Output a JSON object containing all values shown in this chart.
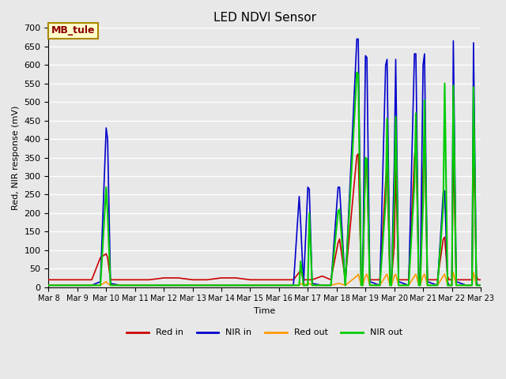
{
  "title": "LED NDVI Sensor",
  "ylabel": "Red, NIR response (mV)",
  "xlabel": "Time",
  "annotation": "MB_tule",
  "ylim": [
    0,
    700
  ],
  "background_color": "#e8e8e8",
  "plot_bg_color": "#e8e8e8",
  "grid_color": "#ffffff",
  "series": {
    "Red in": {
      "color": "#cc0000",
      "lw": 1.2
    },
    "NIR in": {
      "color": "#0000cc",
      "lw": 1.2
    },
    "Red out": {
      "color": "#ff9900",
      "lw": 1.2
    },
    "NIR out": {
      "color": "#00cc00",
      "lw": 1.5
    }
  },
  "x_days": [
    8.0,
    8.5,
    9.0,
    9.5,
    9.8,
    10.0,
    10.05,
    10.15,
    10.5,
    11.0,
    11.5,
    12.0,
    12.5,
    13.0,
    13.5,
    14.0,
    14.5,
    15.0,
    15.5,
    16.0,
    16.5,
    16.7,
    16.75,
    16.85,
    17.0,
    17.05,
    17.15,
    17.5,
    17.8,
    18.05,
    18.1,
    18.3,
    18.7,
    18.75,
    18.85,
    18.9,
    19.0,
    19.05,
    19.15,
    19.5,
    19.7,
    19.75,
    19.85,
    19.9,
    20.0,
    20.05,
    20.15,
    20.5,
    20.7,
    20.75,
    20.85,
    20.9,
    21.0,
    21.05,
    21.15,
    21.5,
    21.7,
    21.75,
    21.85,
    21.9,
    22.0,
    22.05,
    22.15,
    22.5,
    22.7,
    22.75,
    22.85,
    22.9,
    23.0
  ],
  "red_in": [
    20,
    20,
    20,
    20,
    80,
    90,
    80,
    20,
    20,
    20,
    20,
    25,
    25,
    20,
    20,
    25,
    25,
    20,
    20,
    20,
    20,
    40,
    45,
    20,
    20,
    20,
    20,
    30,
    20,
    120,
    130,
    20,
    355,
    360,
    30,
    20,
    330,
    325,
    20,
    20,
    285,
    320,
    30,
    20,
    110,
    320,
    20,
    20,
    350,
    395,
    30,
    20,
    315,
    400,
    20,
    20,
    130,
    135,
    30,
    20,
    20,
    380,
    20,
    20,
    20,
    390,
    30,
    20,
    20
  ],
  "nir_in": [
    5,
    5,
    5,
    5,
    15,
    430,
    400,
    10,
    5,
    5,
    5,
    5,
    5,
    5,
    5,
    5,
    5,
    5,
    5,
    5,
    5,
    245,
    175,
    5,
    270,
    265,
    10,
    5,
    5,
    270,
    270,
    5,
    670,
    670,
    15,
    5,
    625,
    620,
    15,
    5,
    600,
    615,
    15,
    5,
    335,
    615,
    15,
    5,
    630,
    630,
    15,
    5,
    600,
    630,
    15,
    5,
    255,
    260,
    15,
    5,
    5,
    665,
    15,
    5,
    5,
    660,
    15,
    5,
    5
  ],
  "red_out": [
    5,
    5,
    5,
    5,
    5,
    15,
    10,
    5,
    5,
    5,
    5,
    5,
    5,
    5,
    5,
    5,
    5,
    5,
    5,
    5,
    5,
    5,
    10,
    5,
    10,
    10,
    5,
    5,
    5,
    10,
    10,
    5,
    30,
    35,
    5,
    5,
    30,
    35,
    5,
    5,
    30,
    35,
    5,
    5,
    30,
    35,
    5,
    5,
    30,
    35,
    5,
    5,
    30,
    35,
    5,
    5,
    30,
    35,
    5,
    5,
    5,
    40,
    5,
    5,
    5,
    40,
    5,
    5,
    5
  ],
  "nir_out": [
    5,
    5,
    5,
    5,
    5,
    270,
    200,
    5,
    5,
    5,
    5,
    5,
    5,
    5,
    5,
    5,
    5,
    5,
    5,
    5,
    5,
    5,
    70,
    5,
    5,
    200,
    5,
    5,
    5,
    205,
    210,
    5,
    580,
    575,
    5,
    5,
    350,
    345,
    5,
    5,
    230,
    455,
    5,
    5,
    230,
    460,
    5,
    5,
    280,
    470,
    5,
    5,
    230,
    505,
    5,
    5,
    215,
    550,
    5,
    5,
    5,
    545,
    5,
    5,
    5,
    540,
    5,
    5,
    5
  ]
}
